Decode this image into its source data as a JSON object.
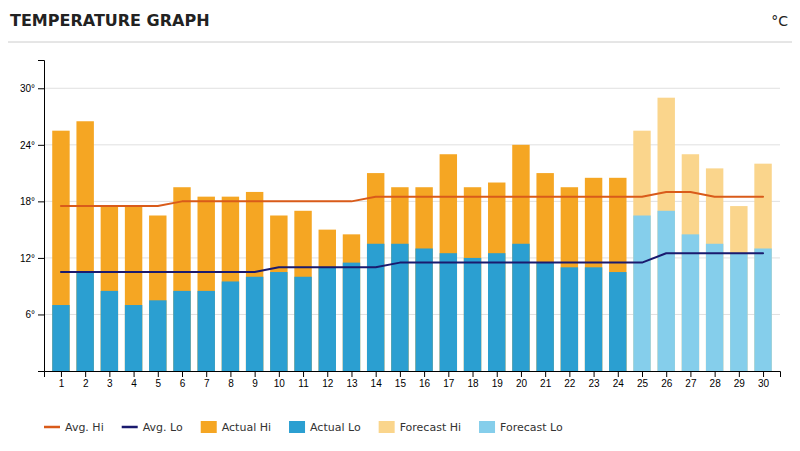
{
  "chart_data": {
    "type": "bar",
    "title": "TEMPERATURE GRAPH",
    "subtitle": "°C",
    "x": [
      1,
      2,
      3,
      4,
      5,
      6,
      7,
      8,
      9,
      10,
      11,
      12,
      13,
      14,
      15,
      16,
      17,
      18,
      19,
      20,
      21,
      22,
      23,
      24,
      25,
      26,
      27,
      28,
      29,
      30
    ],
    "xlim": [
      0.3,
      30.7
    ],
    "xticks": [
      1,
      2,
      3,
      4,
      5,
      6,
      7,
      8,
      9,
      10,
      11,
      12,
      13,
      14,
      15,
      16,
      17,
      18,
      19,
      20,
      21,
      22,
      23,
      24,
      25,
      26,
      27,
      28,
      29,
      30
    ],
    "ylim": [
      0,
      33
    ],
    "yticks": [
      {
        "value": 6,
        "label": "6°"
      },
      {
        "value": 12,
        "label": "12°"
      },
      {
        "value": 18,
        "label": "18°"
      },
      {
        "value": 24,
        "label": "24°"
      },
      {
        "value": 30,
        "label": "30°"
      }
    ],
    "grid": true,
    "legend": "bottom",
    "series": [
      {
        "name": "Avg. Hi",
        "type": "line",
        "color": "#D95B1A",
        "values": [
          17.5,
          17.5,
          17.5,
          17.5,
          17.5,
          18.0,
          18.0,
          18.0,
          18.0,
          18.0,
          18.0,
          18.0,
          18.0,
          18.5,
          18.5,
          18.5,
          18.5,
          18.5,
          18.5,
          18.5,
          18.5,
          18.5,
          18.5,
          18.5,
          18.5,
          19.0,
          19.0,
          18.5,
          18.5,
          18.5
        ]
      },
      {
        "name": "Avg. Lo",
        "type": "line",
        "color": "#1A1A6E",
        "values": [
          10.5,
          10.5,
          10.5,
          10.5,
          10.5,
          10.5,
          10.5,
          10.5,
          10.5,
          11.0,
          11.0,
          11.0,
          11.0,
          11.0,
          11.5,
          11.5,
          11.5,
          11.5,
          11.5,
          11.5,
          11.5,
          11.5,
          11.5,
          11.5,
          11.5,
          12.5,
          12.5,
          12.5,
          12.5,
          12.5
        ]
      },
      {
        "name": "Actual Hi",
        "type": "bar",
        "color": "#F5A623",
        "values": [
          25.5,
          26.5,
          17.5,
          17.5,
          16.5,
          19.5,
          18.5,
          18.5,
          19.0,
          16.5,
          17.0,
          15.0,
          14.5,
          21.0,
          19.5,
          19.5,
          23.0,
          19.5,
          20.0,
          24.0,
          21.0,
          19.5,
          20.5,
          20.5,
          null,
          null,
          null,
          null,
          null,
          null
        ]
      },
      {
        "name": "Actual Lo",
        "type": "bar",
        "color": "#2B9FD1",
        "values": [
          7.0,
          10.5,
          8.5,
          7.0,
          7.5,
          8.5,
          8.5,
          9.5,
          10.0,
          10.5,
          10.0,
          11.0,
          11.5,
          13.5,
          13.5,
          13.0,
          12.5,
          12.0,
          12.5,
          13.5,
          11.5,
          11.0,
          11.0,
          10.5,
          null,
          null,
          null,
          null,
          null,
          null
        ]
      },
      {
        "name": "Forecast Hi",
        "type": "bar",
        "color": "#FAD58C",
        "values": [
          null,
          null,
          null,
          null,
          null,
          null,
          null,
          null,
          null,
          null,
          null,
          null,
          null,
          null,
          null,
          null,
          null,
          null,
          null,
          null,
          null,
          null,
          null,
          null,
          25.5,
          29.0,
          23.0,
          21.5,
          17.5,
          22.0
        ]
      },
      {
        "name": "Forecast Lo",
        "type": "bar",
        "color": "#85CEEB",
        "values": [
          null,
          null,
          null,
          null,
          null,
          null,
          null,
          null,
          null,
          null,
          null,
          null,
          null,
          null,
          null,
          null,
          null,
          null,
          null,
          null,
          null,
          null,
          null,
          null,
          16.5,
          17.0,
          14.5,
          13.5,
          12.5,
          13.0
        ]
      }
    ]
  }
}
